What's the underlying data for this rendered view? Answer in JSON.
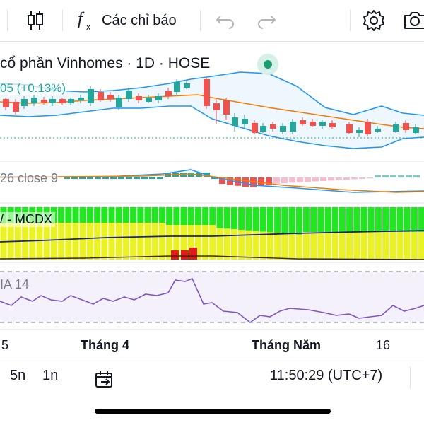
{
  "toolbar": {
    "indicators_label": "Các chỉ báo",
    "icons": [
      "candles-icon",
      "function-icon",
      "undo-icon",
      "redo-icon",
      "settings-icon",
      "camera-icon"
    ]
  },
  "legend": {
    "title": "cổ phần Vinhomes · 1D · HOSE",
    "change": "05 (+0.13%)"
  },
  "panes": {
    "macd_label": "26 close 9",
    "mcdx_label": "/ - MCDX",
    "rsi_label": "IA 14"
  },
  "time_axis": {
    "labels": [
      "5",
      "Tháng 4",
      "Tháng Năm",
      "16"
    ]
  },
  "bottom_bar": {
    "interval_5n": "5n",
    "interval_1n": "1n",
    "time": "11:50:29 (UTC+7)"
  },
  "colors": {
    "up": "#26a69a",
    "down": "#ef5350",
    "bollinger": "#2196f3",
    "ma": "#f57c00",
    "rsi": "#7e57c2",
    "mcdx_green": "#22e622",
    "mcdx_yellow": "#eaf225",
    "mcdx_red": "#e01b1b",
    "live": "#1b9e6f"
  }
}
